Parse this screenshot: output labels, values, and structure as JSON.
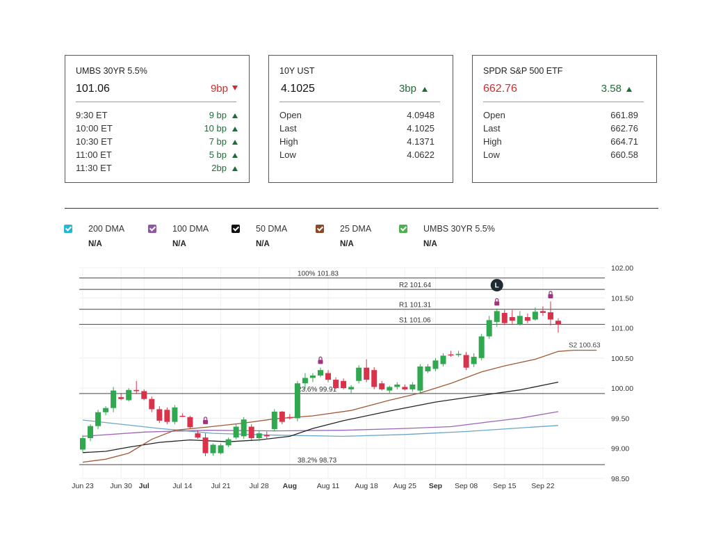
{
  "cards": [
    {
      "title": "UMBS 30YR 5.5%",
      "price": "101.06",
      "change": "9bp",
      "direction": "down",
      "rows": [
        {
          "label": "9:30 ET",
          "value": "9 bp",
          "direction": "up"
        },
        {
          "label": "10:00 ET",
          "value": "10 bp",
          "direction": "up"
        },
        {
          "label": "10:30 ET",
          "value": "7 bp",
          "direction": "up"
        },
        {
          "label": "11:00 ET",
          "value": "5 bp",
          "direction": "up"
        },
        {
          "label": "11:30 ET",
          "value": "2bp",
          "direction": "up"
        }
      ]
    },
    {
      "title": "10Y UST",
      "price": "4.1025",
      "change": "3bp",
      "direction": "up",
      "rows": [
        {
          "label": "Open",
          "value": "4.0948"
        },
        {
          "label": "Last",
          "value": "4.1025"
        },
        {
          "label": "High",
          "value": "4.1371"
        },
        {
          "label": "Low",
          "value": "4.0622"
        }
      ]
    },
    {
      "title": "SPDR S&P 500 ETF",
      "price": "662.76",
      "change": "3.58",
      "direction": "up",
      "price_color": "#d22a2a",
      "rows": [
        {
          "label": "Open",
          "value": "661.89"
        },
        {
          "label": "Last",
          "value": "662.76"
        },
        {
          "label": "High",
          "value": "664.71"
        },
        {
          "label": "Low",
          "value": "660.58"
        }
      ]
    }
  ],
  "legend": [
    {
      "name": "200 DMA",
      "value": "N/A",
      "color": "#29b6d6"
    },
    {
      "name": "100 DMA",
      "value": "N/A",
      "color": "#8e57a6"
    },
    {
      "name": "50 DMA",
      "value": "N/A",
      "color": "#111111"
    },
    {
      "name": "25 DMA",
      "value": "N/A",
      "color": "#8a4a2a"
    },
    {
      "name": "UMBS 30YR 5.5%",
      "value": "N/A",
      "color": "#4caf50"
    }
  ],
  "chart_data": {
    "type": "candlestick",
    "ylim": [
      98.5,
      102.0
    ],
    "yticks": [
      "102.00",
      "101.50",
      "101.00",
      "100.50",
      "100.00",
      "99.50",
      "99.00",
      "98.50"
    ],
    "xticks": [
      {
        "label": "Jun 23",
        "x": 0,
        "bold": false
      },
      {
        "label": "Jun 30",
        "x": 5,
        "bold": false
      },
      {
        "label": "Jul",
        "x": 8,
        "bold": true
      },
      {
        "label": "Jul 14",
        "x": 13,
        "bold": false
      },
      {
        "label": "Jul 21",
        "x": 18,
        "bold": false
      },
      {
        "label": "Jul 28",
        "x": 23,
        "bold": false
      },
      {
        "label": "Aug",
        "x": 27,
        "bold": true
      },
      {
        "label": "Aug 11",
        "x": 32,
        "bold": false
      },
      {
        "label": "Aug 18",
        "x": 37,
        "bold": false
      },
      {
        "label": "Aug 25",
        "x": 42,
        "bold": false
      },
      {
        "label": "Sep",
        "x": 46,
        "bold": true
      },
      {
        "label": "Sep 08",
        "x": 50,
        "bold": false
      },
      {
        "label": "Sep 15",
        "x": 55,
        "bold": false
      },
      {
        "label": "Sep 22",
        "x": 60,
        "bold": false
      }
    ],
    "x_max": 63,
    "levels": [
      {
        "label": "100% 101.83",
        "value": 101.83
      },
      {
        "label": "R2 101.64",
        "value": 101.64
      },
      {
        "label": "R1 101.31",
        "value": 101.31
      },
      {
        "label": "S1 101.06",
        "value": 101.06
      },
      {
        "label": "23.6% 99.91",
        "value": 99.91
      },
      {
        "label": "38.2% 98.73",
        "value": 98.73
      }
    ],
    "s2_label": "S2 100.63",
    "candles": [
      {
        "x": 0,
        "o": 98.98,
        "h": 99.22,
        "l": 98.93,
        "c": 99.17
      },
      {
        "x": 1,
        "o": 99.17,
        "h": 99.4,
        "l": 99.12,
        "c": 99.37
      },
      {
        "x": 2,
        "o": 99.37,
        "h": 99.64,
        "l": 99.32,
        "c": 99.6
      },
      {
        "x": 3,
        "o": 99.6,
        "h": 99.7,
        "l": 99.55,
        "c": 99.67
      },
      {
        "x": 4,
        "o": 99.67,
        "h": 100.02,
        "l": 99.6,
        "c": 99.96
      },
      {
        "x": 5,
        "o": 99.85,
        "h": 99.92,
        "l": 99.8,
        "c": 99.82
      },
      {
        "x": 6,
        "o": 99.8,
        "h": 100.0,
        "l": 99.78,
        "c": 99.97
      },
      {
        "x": 7,
        "o": 99.97,
        "h": 100.12,
        "l": 99.9,
        "c": 99.95
      },
      {
        "x": 8,
        "o": 99.95,
        "h": 99.98,
        "l": 99.8,
        "c": 99.82
      },
      {
        "x": 9,
        "o": 99.82,
        "h": 99.86,
        "l": 99.6,
        "c": 99.65
      },
      {
        "x": 10,
        "o": 99.65,
        "h": 99.7,
        "l": 99.42,
        "c": 99.46
      },
      {
        "x": 11,
        "o": 99.64,
        "h": 99.68,
        "l": 99.4,
        "c": 99.44
      },
      {
        "x": 12,
        "o": 99.44,
        "h": 99.72,
        "l": 99.4,
        "c": 99.68
      },
      {
        "x": 13,
        "o": 99.54,
        "h": 99.58,
        "l": 99.52,
        "c": 99.53
      },
      {
        "x": 14,
        "o": 99.52,
        "h": 99.54,
        "l": 99.33,
        "c": 99.35
      },
      {
        "x": 15,
        "o": 99.25,
        "h": 99.3,
        "l": 99.16,
        "c": 99.18
      },
      {
        "x": 16,
        "o": 99.18,
        "h": 99.25,
        "l": 98.87,
        "c": 98.92
      },
      {
        "x": 17,
        "o": 98.92,
        "h": 99.08,
        "l": 98.88,
        "c": 99.06
      },
      {
        "x": 18,
        "o": 98.92,
        "h": 99.08,
        "l": 98.9,
        "c": 99.05
      },
      {
        "x": 19,
        "o": 99.05,
        "h": 99.18,
        "l": 99.02,
        "c": 99.15
      },
      {
        "x": 20,
        "o": 99.18,
        "h": 99.4,
        "l": 99.15,
        "c": 99.36
      },
      {
        "x": 21,
        "o": 99.2,
        "h": 99.52,
        "l": 99.16,
        "c": 99.48
      },
      {
        "x": 22,
        "o": 99.36,
        "h": 99.4,
        "l": 99.14,
        "c": 99.17
      },
      {
        "x": 23,
        "o": 99.17,
        "h": 99.3,
        "l": 99.12,
        "c": 99.25
      },
      {
        "x": 24,
        "o": 99.22,
        "h": 99.28,
        "l": 99.15,
        "c": 99.2
      },
      {
        "x": 25,
        "o": 99.32,
        "h": 99.65,
        "l": 99.28,
        "c": 99.61
      },
      {
        "x": 26,
        "o": 99.61,
        "h": 99.62,
        "l": 99.4,
        "c": 99.44
      },
      {
        "x": 27,
        "o": 99.52,
        "h": 99.57,
        "l": 99.48,
        "c": 99.5
      },
      {
        "x": 28,
        "o": 99.5,
        "h": 100.12,
        "l": 99.45,
        "c": 100.08
      },
      {
        "x": 29,
        "o": 100.08,
        "h": 100.25,
        "l": 99.98,
        "c": 100.17
      },
      {
        "x": 30,
        "o": 100.17,
        "h": 100.25,
        "l": 100.1,
        "c": 100.21
      },
      {
        "x": 31,
        "o": 100.21,
        "h": 100.34,
        "l": 100.18,
        "c": 100.3
      },
      {
        "x": 32,
        "o": 100.25,
        "h": 100.3,
        "l": 100.1,
        "c": 100.14
      },
      {
        "x": 33,
        "o": 100.14,
        "h": 100.18,
        "l": 99.98,
        "c": 100.0
      },
      {
        "x": 34,
        "o": 100.12,
        "h": 100.16,
        "l": 99.98,
        "c": 100.0
      },
      {
        "x": 35,
        "o": 99.98,
        "h": 100.05,
        "l": 99.92,
        "c": 100.02
      },
      {
        "x": 36,
        "o": 100.12,
        "h": 100.38,
        "l": 100.08,
        "c": 100.34
      },
      {
        "x": 37,
        "o": 100.34,
        "h": 100.48,
        "l": 100.1,
        "c": 100.14
      },
      {
        "x": 38,
        "o": 100.3,
        "h": 100.35,
        "l": 99.98,
        "c": 100.02
      },
      {
        "x": 39,
        "o": 100.08,
        "h": 100.12,
        "l": 99.96,
        "c": 99.98
      },
      {
        "x": 40,
        "o": 99.96,
        "h": 100.04,
        "l": 99.92,
        "c": 100.02
      },
      {
        "x": 41,
        "o": 100.02,
        "h": 100.1,
        "l": 99.98,
        "c": 100.06
      },
      {
        "x": 42,
        "o": 100.02,
        "h": 100.06,
        "l": 99.96,
        "c": 99.98
      },
      {
        "x": 43,
        "o": 99.98,
        "h": 100.1,
        "l": 99.94,
        "c": 100.06
      },
      {
        "x": 44,
        "o": 99.96,
        "h": 100.4,
        "l": 99.92,
        "c": 100.36
      },
      {
        "x": 45,
        "o": 100.28,
        "h": 100.4,
        "l": 100.25,
        "c": 100.36
      },
      {
        "x": 46,
        "o": 100.32,
        "h": 100.5,
        "l": 100.28,
        "c": 100.46
      },
      {
        "x": 47,
        "o": 100.4,
        "h": 100.58,
        "l": 100.36,
        "c": 100.54
      },
      {
        "x": 48,
        "o": 100.56,
        "h": 100.62,
        "l": 100.52,
        "c": 100.55
      },
      {
        "x": 49,
        "o": 100.55,
        "h": 100.62,
        "l": 100.52,
        "c": 100.57
      },
      {
        "x": 50,
        "o": 100.55,
        "h": 100.6,
        "l": 100.3,
        "c": 100.34
      },
      {
        "x": 51,
        "o": 100.4,
        "h": 100.58,
        "l": 100.35,
        "c": 100.52
      },
      {
        "x": 52,
        "o": 100.5,
        "h": 100.9,
        "l": 100.46,
        "c": 100.86
      },
      {
        "x": 53,
        "o": 100.86,
        "h": 101.2,
        "l": 100.82,
        "c": 101.13
      },
      {
        "x": 54,
        "o": 101.1,
        "h": 101.32,
        "l": 101.02,
        "c": 101.28
      },
      {
        "x": 55,
        "o": 101.25,
        "h": 101.3,
        "l": 101.05,
        "c": 101.08
      },
      {
        "x": 56,
        "o": 101.18,
        "h": 101.3,
        "l": 101.06,
        "c": 101.12
      },
      {
        "x": 57,
        "o": 101.06,
        "h": 101.28,
        "l": 101.04,
        "c": 101.2
      },
      {
        "x": 58,
        "o": 101.18,
        "h": 101.24,
        "l": 101.08,
        "c": 101.12
      },
      {
        "x": 59,
        "o": 101.14,
        "h": 101.34,
        "l": 101.12,
        "c": 101.27
      },
      {
        "x": 60,
        "o": 101.28,
        "h": 101.36,
        "l": 101.2,
        "c": 101.25
      },
      {
        "x": 61,
        "o": 101.26,
        "h": 101.44,
        "l": 101.04,
        "c": 101.14
      },
      {
        "x": 62,
        "o": 101.12,
        "h": 101.16,
        "l": 100.92,
        "c": 101.06
      }
    ],
    "lock_markers": [
      {
        "x": 16,
        "y": 99.46
      },
      {
        "x": 31,
        "y": 100.46
      },
      {
        "x": 54,
        "y": 101.43
      },
      {
        "x": 61,
        "y": 101.55
      }
    ],
    "l_marker": {
      "x": 54,
      "y": 101.71,
      "label": "L"
    },
    "series": [
      {
        "color": "#6aa5c8",
        "points": [
          [
            0,
            99.47
          ],
          [
            10,
            99.33
          ],
          [
            17,
            99.25
          ],
          [
            25,
            99.22
          ],
          [
            34,
            99.2
          ],
          [
            42,
            99.23
          ],
          [
            50,
            99.28
          ],
          [
            56,
            99.33
          ],
          [
            62,
            99.38
          ]
        ]
      },
      {
        "color": "#9a64b8",
        "points": [
          [
            0,
            99.2
          ],
          [
            8,
            99.27
          ],
          [
            16,
            99.3
          ],
          [
            25,
            99.29
          ],
          [
            34,
            99.3
          ],
          [
            42,
            99.33
          ],
          [
            48,
            99.36
          ],
          [
            53,
            99.44
          ],
          [
            57,
            99.5
          ],
          [
            62,
            99.61
          ]
        ]
      },
      {
        "color": "#222222",
        "points": [
          [
            0,
            98.93
          ],
          [
            3,
            98.95
          ],
          [
            6,
            99.02
          ],
          [
            10,
            99.1
          ],
          [
            14,
            99.14
          ],
          [
            19,
            99.11
          ],
          [
            23,
            99.14
          ],
          [
            27,
            99.2
          ],
          [
            30,
            99.33
          ],
          [
            34,
            99.46
          ],
          [
            40,
            99.62
          ],
          [
            46,
            99.77
          ],
          [
            52,
            99.88
          ],
          [
            57,
            99.97
          ],
          [
            62,
            100.1
          ]
        ]
      },
      {
        "color": "#a05a34",
        "points": [
          [
            0,
            98.77
          ],
          [
            3,
            98.82
          ],
          [
            6,
            98.92
          ],
          [
            9,
            99.15
          ],
          [
            12,
            99.3
          ],
          [
            16,
            99.35
          ],
          [
            21,
            99.42
          ],
          [
            25,
            99.49
          ],
          [
            30,
            99.54
          ],
          [
            35,
            99.63
          ],
          [
            40,
            99.8
          ],
          [
            44,
            99.92
          ],
          [
            48,
            100.08
          ],
          [
            52,
            100.27
          ],
          [
            55,
            100.37
          ],
          [
            59,
            100.48
          ],
          [
            62,
            100.61
          ],
          [
            64,
            100.63
          ],
          [
            67,
            100.63
          ]
        ]
      }
    ]
  }
}
